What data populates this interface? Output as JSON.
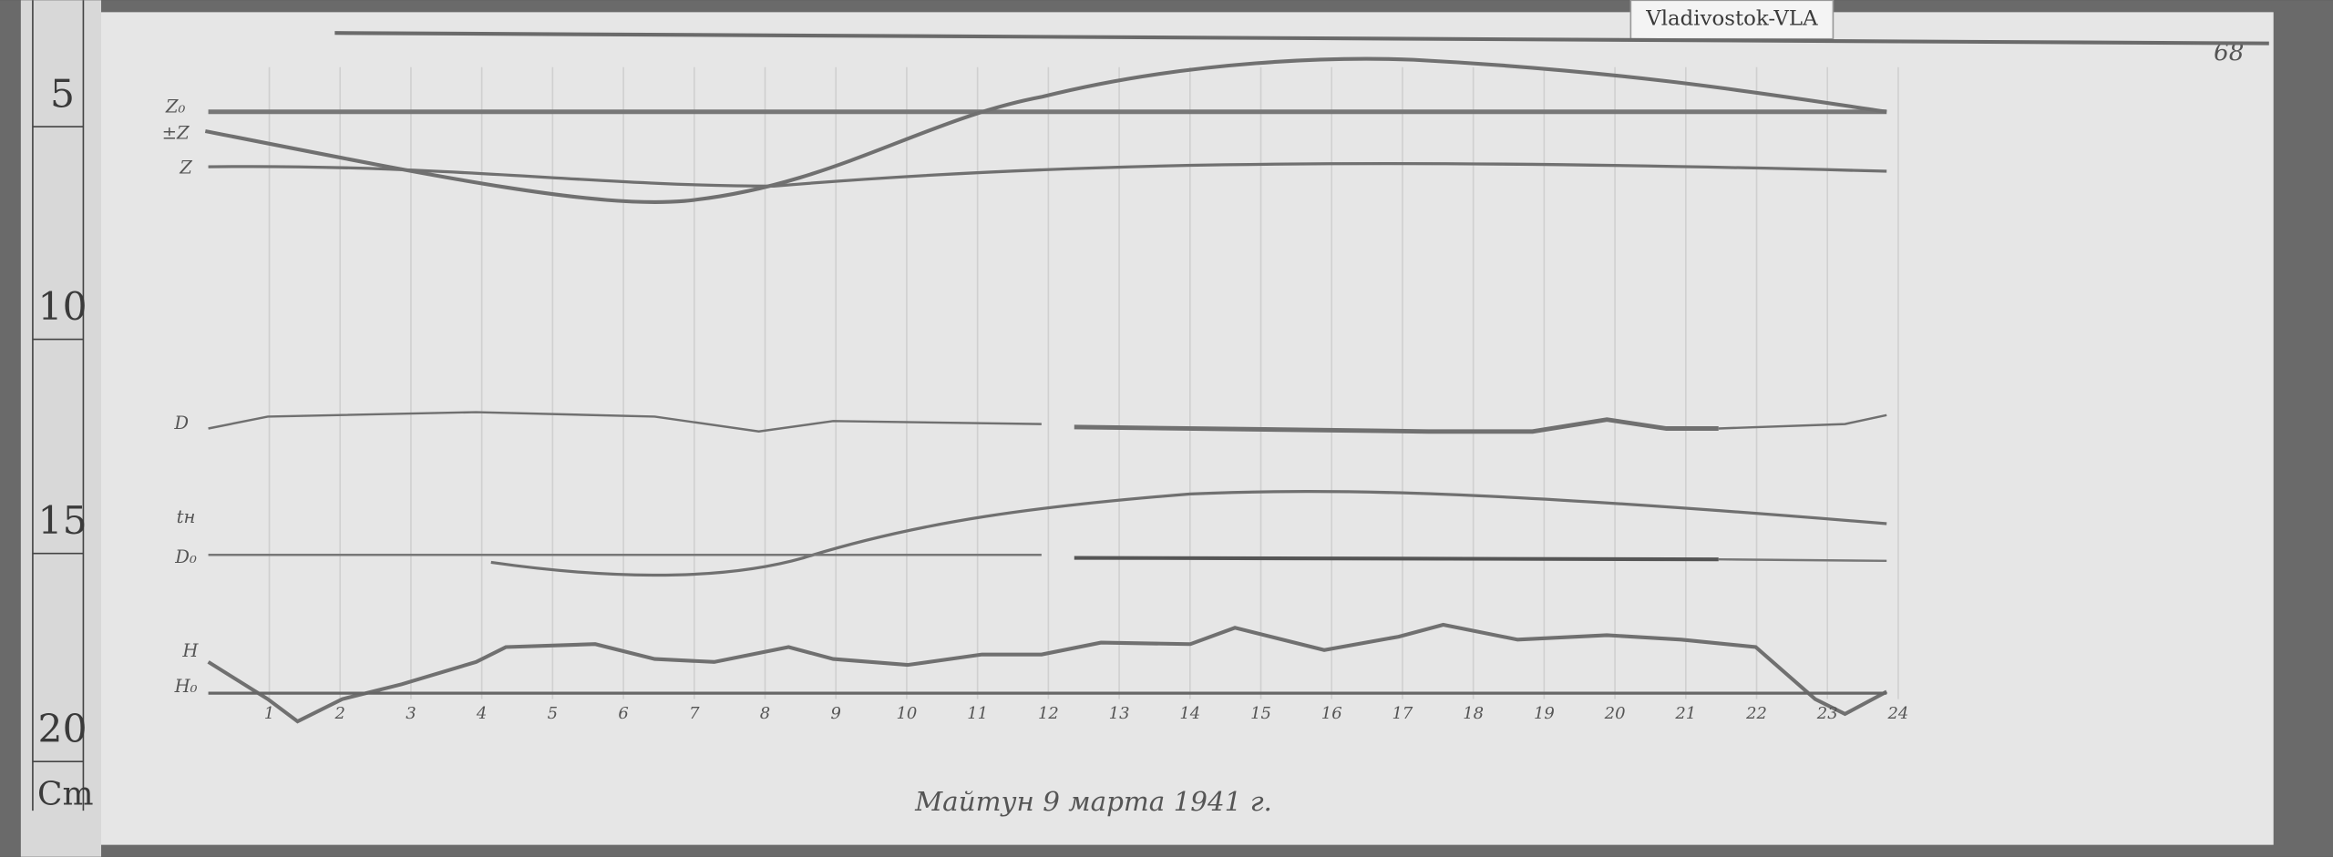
{
  "label_tag": "Vladivostok-VLA",
  "page_number": "68",
  "ruler": {
    "ticks": [
      "5",
      "10",
      "15",
      "20"
    ],
    "unit": "Cm"
  },
  "trace_labels": [
    "Z₀",
    "±Z",
    "Z",
    "D",
    "tн",
    "D₀",
    "H",
    "H₀"
  ],
  "hours": [
    "1",
    "2",
    "3",
    "4",
    "5",
    "6",
    "7",
    "8",
    "9",
    "10",
    "11",
    "12",
    "13",
    "14",
    "15",
    "16",
    "17",
    "18",
    "19",
    "20",
    "21",
    "22",
    "23",
    "24"
  ],
  "caption": "Майтун 9 марта 1941 г."
}
